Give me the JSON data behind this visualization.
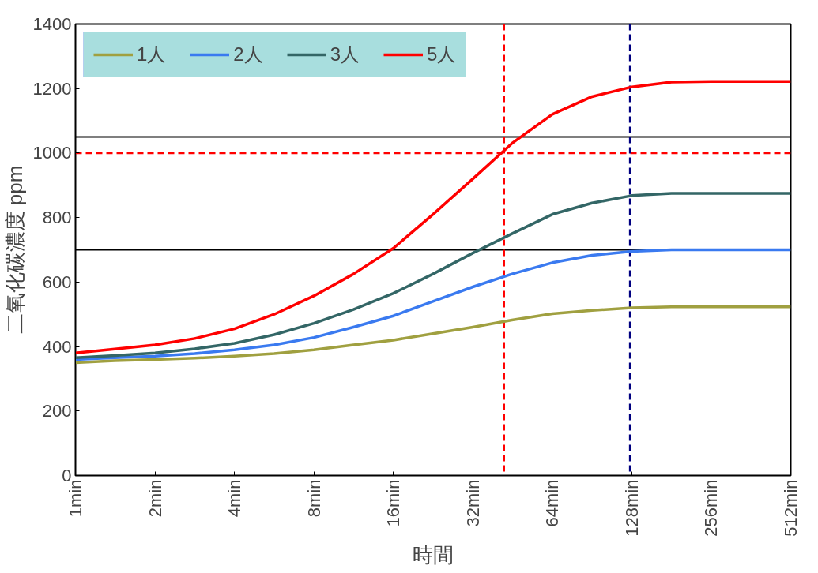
{
  "chart_data": {
    "type": "line",
    "xlabel": "時間",
    "ylabel": "二氧化碳濃度 ppm",
    "log": "x",
    "x": [
      1,
      1.41,
      2,
      2.83,
      4,
      5.66,
      8,
      11.3,
      16,
      22.6,
      32,
      45,
      64,
      90.5,
      128,
      181,
      256,
      362,
      512
    ],
    "xlim": [
      1,
      512
    ],
    "xticks": [
      {
        "value": 1,
        "label": "1min"
      },
      {
        "value": 2,
        "label": "2min"
      },
      {
        "value": 4,
        "label": "4min"
      },
      {
        "value": 8,
        "label": "8min"
      },
      {
        "value": 16,
        "label": "16min"
      },
      {
        "value": 32,
        "label": "32min"
      },
      {
        "value": 64,
        "label": "64min"
      },
      {
        "value": 128,
        "label": "128min"
      },
      {
        "value": 256,
        "label": "256min"
      },
      {
        "value": 512,
        "label": "512min"
      }
    ],
    "ylim": [
      0,
      1400
    ],
    "yticks": [
      0,
      200,
      400,
      600,
      800,
      1000,
      1200,
      1400
    ],
    "grid": false,
    "legend": "top left",
    "marker": "none",
    "line_style": "solid",
    "series": [
      {
        "name": "1人",
        "color": "#a0a040",
        "values": [
          350,
          356,
          360,
          364,
          370,
          378,
          390,
          405,
          420,
          440,
          460,
          482,
          502,
          512,
          520,
          523,
          523,
          523,
          523
        ]
      },
      {
        "name": "2人",
        "color": "#3a7af0",
        "values": [
          360,
          365,
          370,
          378,
          390,
          405,
          428,
          460,
          495,
          540,
          585,
          625,
          660,
          683,
          695,
          700,
          700,
          700,
          700
        ]
      },
      {
        "name": "3人",
        "color": "#336666",
        "values": [
          365,
          372,
          380,
          393,
          410,
          437,
          472,
          515,
          565,
          625,
          690,
          750,
          810,
          845,
          868,
          875,
          875,
          875,
          875
        ]
      },
      {
        "name": "5人",
        "color": "#ff0000",
        "values": [
          380,
          392,
          405,
          425,
          455,
          500,
          557,
          625,
          705,
          810,
          920,
          1030,
          1120,
          1175,
          1205,
          1220,
          1222,
          1222,
          1222
        ]
      }
    ],
    "ref_lines": [
      {
        "axis": "y",
        "value": 1050,
        "color": "#000000",
        "line_style": "solid"
      },
      {
        "axis": "y",
        "value": 700,
        "color": "#000000",
        "line_style": "solid"
      },
      {
        "axis": "y",
        "value": 1000,
        "color": "#ff0000",
        "line_style": "dashed"
      },
      {
        "axis": "x",
        "value": 42,
        "color": "#ff0000",
        "line_style": "dashed"
      },
      {
        "axis": "x",
        "value": 126,
        "color": "#000080",
        "line_style": "dashed"
      }
    ]
  }
}
